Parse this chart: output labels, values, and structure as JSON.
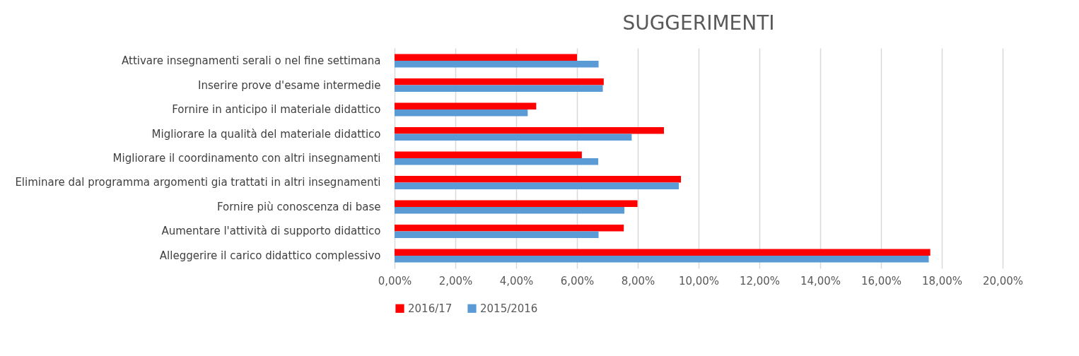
{
  "chart_data": {
    "type": "bar",
    "orientation": "horizontal",
    "title": "SUGGERIMENTI",
    "categories": [
      "Attivare insegnamenti serali o nel fine settimana",
      "Inserire prove d'esame intermedie",
      "Fornire in anticipo il materiale didattico",
      "Migliorare la qualità del materiale didattico",
      "Migliorare il coordinamento con altri insegnamenti",
      "Eliminare dal programma argomenti gia trattati in altri insegnamenti",
      "Fornire più conoscenza di base",
      "Aumentare l'attività di supporto didattico",
      "Alleggerire il carico didattico complessivo"
    ],
    "series": [
      {
        "name": "2016/17",
        "color": "#ff0000",
        "values": [
          6.0,
          6.88,
          4.66,
          8.86,
          6.16,
          9.42,
          7.99,
          7.54,
          17.62
        ]
      },
      {
        "name": "2015/2016",
        "color": "#5b9bd5",
        "values": [
          6.71,
          6.85,
          4.38,
          7.8,
          6.7,
          9.35,
          7.56,
          6.71,
          17.57
        ]
      }
    ],
    "xlim": [
      0,
      20
    ],
    "xticks": [
      {
        "value": 0,
        "label": "0,00%"
      },
      {
        "value": 2,
        "label": "2,00%"
      },
      {
        "value": 4,
        "label": "4,00%"
      },
      {
        "value": 6,
        "label": "6,00%"
      },
      {
        "value": 8,
        "label": "8,00%"
      },
      {
        "value": 10,
        "label": "10,00%"
      },
      {
        "value": 12,
        "label": "12,00%"
      },
      {
        "value": 14,
        "label": "14,00%"
      },
      {
        "value": 16,
        "label": "16,00%"
      },
      {
        "value": 18,
        "label": "18,00%"
      },
      {
        "value": 20,
        "label": "20,00%"
      }
    ],
    "grid": "x",
    "legend": "bottom"
  }
}
